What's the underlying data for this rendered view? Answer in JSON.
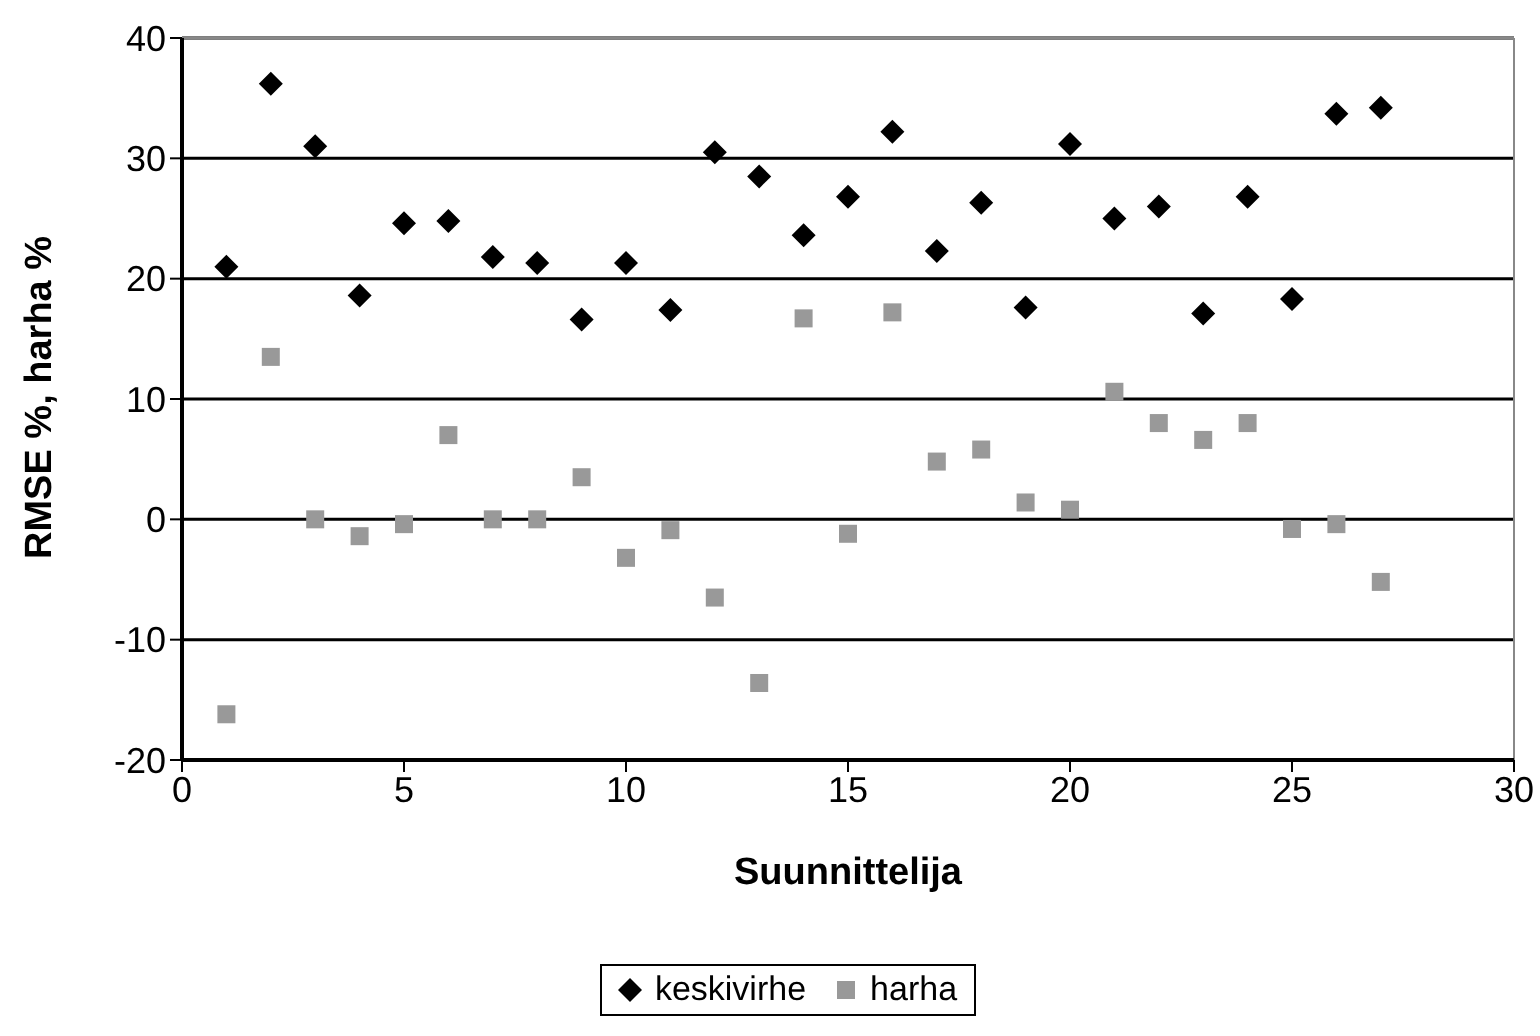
{
  "chart_data": {
    "type": "scatter",
    "xlabel": "Suunnittelija",
    "ylabel": "RMSE %, harha %",
    "x": [
      1,
      2,
      3,
      4,
      5,
      6,
      7,
      8,
      9,
      10,
      11,
      12,
      13,
      14,
      15,
      16,
      17,
      18,
      19,
      20,
      21,
      22,
      23,
      24,
      25,
      26,
      27
    ],
    "series": [
      {
        "name": "keskivirhe",
        "color": "#000000",
        "marker": "diamond",
        "values": [
          21,
          36.2,
          31,
          18.6,
          24.6,
          24.8,
          21.8,
          21.3,
          16.6,
          21.3,
          17.4,
          30.5,
          28.5,
          23.6,
          26.8,
          32.2,
          22.3,
          26.3,
          17.6,
          31.2,
          25,
          26,
          17.1,
          26.8,
          18.3,
          33.7,
          34.2
        ]
      },
      {
        "name": "harha",
        "color": "#999999",
        "marker": "square",
        "values": [
          -16.2,
          13.5,
          0,
          -1.4,
          -0.4,
          7,
          0,
          0,
          3.5,
          -3.2,
          -0.9,
          -6.5,
          -13.6,
          16.7,
          -1.2,
          17.2,
          4.8,
          5.8,
          1.4,
          0.8,
          10.6,
          8,
          6.6,
          8,
          -0.8,
          -0.4,
          -5.2
        ]
      }
    ],
    "xlim": [
      0,
      30
    ],
    "xticks": [
      0,
      5,
      10,
      15,
      20,
      25,
      30
    ],
    "ylim": [
      -20,
      40
    ],
    "yticks": [
      -20,
      -10,
      0,
      10,
      20,
      30,
      40
    ],
    "grid": "y",
    "legend": "bottom"
  }
}
